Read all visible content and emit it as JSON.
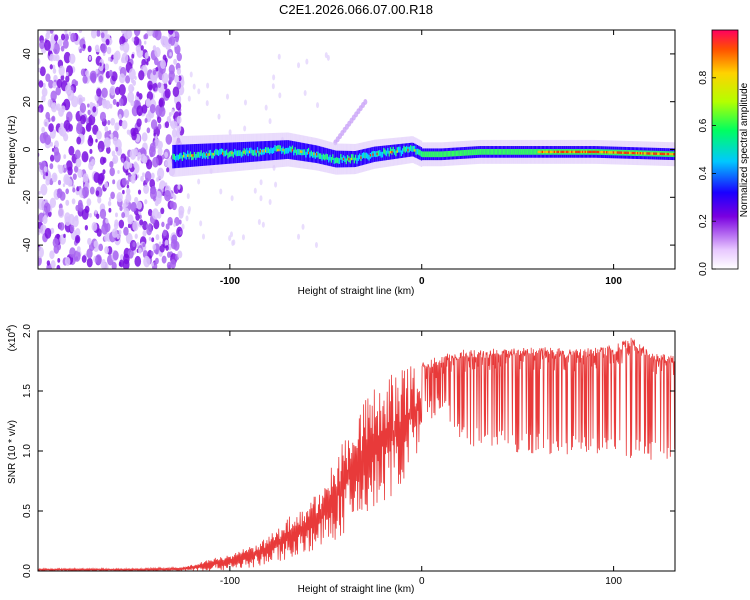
{
  "title": "C2E1.2026.066.07.00.R18",
  "chart_data": [
    {
      "type": "heatmap",
      "xlabel": "Height of straight line (km)",
      "ylabel": "Frequency (Hz)",
      "xlim": [
        -200,
        132
      ],
      "ylim": [
        -50,
        50
      ],
      "xticks": [
        -100,
        0,
        100
      ],
      "yticks": [
        -40,
        -20,
        0,
        20,
        40
      ],
      "colorbar": {
        "label": "Normalized spectral amplitude",
        "range": [
          0,
          1
        ],
        "ticks": [
          "0.0",
          "0.2",
          "0.4",
          "0.6",
          "0.8"
        ]
      },
      "signal_track": {
        "x": [
          -130,
          -110,
          -90,
          -70,
          -55,
          -45,
          -35,
          -25,
          -15,
          -5,
          0,
          10,
          30,
          60,
          90,
          132
        ],
        "freq_hz": [
          -3,
          -2,
          -1,
          0,
          -2,
          -4,
          -4,
          -2,
          -1,
          0,
          -2,
          -2,
          -1,
          -1,
          -1,
          -2
        ],
        "note": "broadband noise region for x < -130 km; narrowband signal track for x > -130 km"
      }
    },
    {
      "type": "line",
      "xlabel": "Height of straight line (km)",
      "ylabel": "SNR (10 * v/v)",
      "multiplier": "(x10",
      "multiplier_exp": "4",
      "yticks": [
        "0.0",
        "0.5",
        "1.0",
        "1.5",
        "2.0"
      ],
      "xticks": [
        -100,
        0,
        100
      ],
      "xlim": [
        -200,
        132
      ],
      "ylim": [
        0,
        2.0
      ],
      "color": "#e83a3a",
      "series": [
        {
          "name": "SNR",
          "x": [
            -200,
            -150,
            -125,
            -110,
            -100,
            -90,
            -80,
            -70,
            -60,
            -50,
            -40,
            -30,
            -20,
            -10,
            -5,
            0,
            10,
            20,
            30,
            40,
            50,
            60,
            70,
            80,
            90,
            100,
            110,
            120,
            132
          ],
          "upper": [
            0.02,
            0.02,
            0.03,
            0.1,
            0.14,
            0.2,
            0.28,
            0.45,
            0.55,
            0.75,
            1.15,
            1.45,
            1.6,
            1.7,
            1.75,
            1.75,
            1.8,
            1.85,
            1.85,
            1.86,
            1.87,
            1.87,
            1.86,
            1.85,
            1.86,
            1.88,
            1.95,
            1.82,
            1.8
          ],
          "lower": [
            0.0,
            0.0,
            0.0,
            0.0,
            0.01,
            0.02,
            0.05,
            0.1,
            0.15,
            0.2,
            0.3,
            0.4,
            0.55,
            0.7,
            0.9,
            1.0,
            1.1,
            0.85,
            0.8,
            0.78,
            0.75,
            0.75,
            0.74,
            0.74,
            0.74,
            0.74,
            0.72,
            0.7,
            0.72
          ]
        }
      ]
    }
  ]
}
